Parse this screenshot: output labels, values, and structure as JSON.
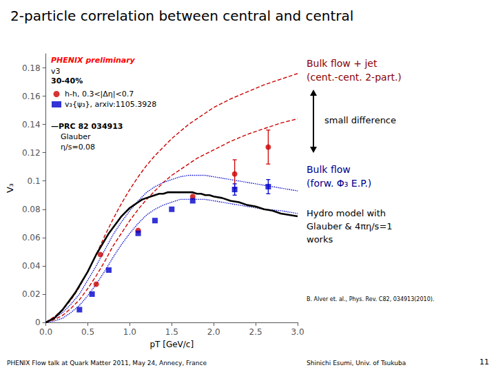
{
  "chart_data": {
    "type": "line",
    "title": "2-particle correlation between central and central",
    "x_label": "pT [GeV/c]",
    "y_label": "V₃",
    "xlim": [
      0,
      3.0
    ],
    "xticks": [
      {
        "value": 0,
        "label": "0.0"
      },
      0.5,
      {
        "value": 1.0,
        "label": "1.0"
      },
      1.5,
      {
        "value": 2.0,
        "label": "2.0"
      },
      2.5,
      {
        "value": 3.0,
        "label": "3.0"
      }
    ],
    "ylim": [
      0,
      0.19
    ],
    "yticks": [
      0,
      0.02,
      0.04,
      0.06,
      0.08,
      0.1,
      0.12,
      0.14,
      0.16,
      0.18
    ],
    "grid": false,
    "legend": "upper left",
    "series": [
      {
        "type": "line",
        "line_style": "dotted",
        "color": "#0000cc",
        "x": [
          0.0,
          0.1,
          0.2,
          0.3,
          0.4,
          0.5,
          0.6,
          0.7,
          0.8,
          0.9,
          1.0,
          1.1,
          1.2,
          1.3,
          1.4,
          1.5,
          1.6,
          1.7,
          1.8,
          1.9,
          2.0,
          2.2,
          2.4,
          2.6,
          2.8,
          3.0
        ],
        "values": [
          0.0,
          0.003,
          0.007,
          0.013,
          0.02,
          0.03,
          0.04,
          0.051,
          0.062,
          0.071,
          0.079,
          0.086,
          0.092,
          0.096,
          0.099,
          0.101,
          0.103,
          0.104,
          0.104,
          0.104,
          0.103,
          0.101,
          0.099,
          0.097,
          0.095,
          0.093
        ]
      },
      {
        "type": "line",
        "line_style": "dotted",
        "color": "#0000cc",
        "x": [
          0.0,
          0.1,
          0.2,
          0.3,
          0.4,
          0.5,
          0.6,
          0.7,
          0.8,
          0.9,
          1.0,
          1.1,
          1.2,
          1.3,
          1.4,
          1.5,
          1.6,
          1.7,
          1.8,
          1.9,
          2.0,
          2.2,
          2.4,
          2.6,
          2.8,
          3.0
        ],
        "values": [
          0.0,
          0.001,
          0.003,
          0.007,
          0.012,
          0.019,
          0.027,
          0.036,
          0.046,
          0.055,
          0.063,
          0.07,
          0.076,
          0.08,
          0.083,
          0.085,
          0.087,
          0.087,
          0.087,
          0.087,
          0.086,
          0.084,
          0.082,
          0.08,
          0.079,
          0.077
        ]
      },
      {
        "type": "line",
        "line_style": "dashed",
        "color": "#cc0000",
        "x": [
          0.0,
          0.1,
          0.2,
          0.3,
          0.4,
          0.5,
          0.6,
          0.7,
          0.8,
          0.9,
          1.0,
          1.1,
          1.2,
          1.3,
          1.4,
          1.5,
          1.6,
          1.7,
          1.8,
          1.9,
          2.0,
          2.2,
          2.4,
          2.6,
          2.8,
          3.0
        ],
        "values": [
          0.0,
          0.004,
          0.009,
          0.016,
          0.025,
          0.036,
          0.048,
          0.061,
          0.073,
          0.084,
          0.094,
          0.103,
          0.111,
          0.118,
          0.124,
          0.13,
          0.135,
          0.14,
          0.144,
          0.148,
          0.152,
          0.158,
          0.163,
          0.168,
          0.172,
          0.176
        ]
      },
      {
        "type": "line",
        "line_style": "dashed",
        "color": "#cc0000",
        "x": [
          0.0,
          0.1,
          0.2,
          0.3,
          0.4,
          0.5,
          0.6,
          0.7,
          0.8,
          0.9,
          1.0,
          1.1,
          1.2,
          1.3,
          1.4,
          1.5,
          1.6,
          1.7,
          1.8,
          1.9,
          2.0,
          2.2,
          2.4,
          2.6,
          2.8,
          3.0
        ],
        "values": [
          0.0,
          0.002,
          0.005,
          0.01,
          0.016,
          0.024,
          0.033,
          0.043,
          0.054,
          0.063,
          0.072,
          0.08,
          0.087,
          0.093,
          0.099,
          0.104,
          0.108,
          0.112,
          0.116,
          0.119,
          0.122,
          0.128,
          0.133,
          0.137,
          0.141,
          0.144
        ]
      },
      {
        "type": "line",
        "line_style": "solid",
        "color": "black",
        "x": [
          0.0,
          0.05,
          0.1,
          0.15,
          0.2,
          0.25,
          0.3,
          0.35,
          0.4,
          0.45,
          0.5,
          0.55,
          0.6,
          0.65,
          0.7,
          0.75,
          0.8,
          0.85,
          0.9,
          0.95,
          1.0,
          1.05,
          1.1,
          1.15,
          1.2,
          1.25,
          1.3,
          1.35,
          1.4,
          1.45,
          1.5,
          1.55,
          1.6,
          1.65,
          1.7,
          1.75,
          1.8,
          1.85,
          1.9,
          1.95,
          2.0,
          2.1,
          2.2,
          2.3,
          2.4,
          2.5,
          2.6,
          2.7,
          2.8,
          2.9,
          3.0
        ],
        "values": [
          0.0,
          0.0015,
          0.003,
          0.006,
          0.009,
          0.013,
          0.017,
          0.021,
          0.026,
          0.031,
          0.036,
          0.042,
          0.048,
          0.053,
          0.058,
          0.063,
          0.067,
          0.071,
          0.075,
          0.078,
          0.081,
          0.083,
          0.085,
          0.087,
          0.088,
          0.089,
          0.09,
          0.091,
          0.091,
          0.092,
          0.092,
          0.092,
          0.092,
          0.092,
          0.092,
          0.092,
          0.091,
          0.091,
          0.09,
          0.09,
          0.089,
          0.088,
          0.086,
          0.085,
          0.083,
          0.082,
          0.08,
          0.079,
          0.077,
          0.076,
          0.075
        ]
      },
      {
        "type": "scatter",
        "name": "h-h, 0.3<|Δη|<0.7",
        "marker": "circle",
        "color": "#cc0000",
        "x": [
          0.6,
          0.65,
          1.1,
          1.75,
          2.25,
          2.65
        ],
        "values": [
          0.027,
          0.048,
          0.065,
          0.089,
          0.105,
          0.124
        ],
        "errors": [
          0.0,
          0.0,
          0.0,
          0.0,
          0.01,
          0.012
        ]
      },
      {
        "type": "scatter",
        "name": "v₃{ψ₃}, arxiv:1105.3928",
        "marker": "square",
        "color": "#0000cc",
        "x": [
          0.4,
          0.55,
          0.75,
          1.1,
          1.3,
          1.5,
          1.75,
          2.25,
          2.65
        ],
        "values": [
          0.009,
          0.02,
          0.037,
          0.063,
          0.072,
          0.08,
          0.086,
          0.094,
          0.096
        ],
        "errors": [
          0.0,
          0.0,
          0.0,
          0.0,
          0.0,
          0.0,
          0.0,
          0.004,
          0.005
        ]
      }
    ],
    "annotations": [
      {
        "text": "PHENIX preliminary",
        "color": "red"
      },
      {
        "text": "v3"
      },
      {
        "text": "30-40%"
      },
      {
        "text": "—PRC 82 034913"
      },
      {
        "text": "Glauber"
      },
      {
        "text": "η/s=0.08"
      },
      {
        "text": "Bulk flow + jet\n(cent.-cent. 2-part.)",
        "color": "#8b0000"
      },
      {
        "text": "small difference"
      },
      {
        "text": "Bulk flow\n(forw. Φ₃ E.P.)",
        "color": "#00008b"
      },
      {
        "text": "Hydro model with\nGlauber & 4πη/s=1\nworks"
      },
      {
        "text": "B. Alver et. al., Phys. Rev. C82, 034913(2010)."
      },
      {
        "text": "PHENIX Flow talk at Quark Matter 2011, May 24, Annecy, France"
      },
      {
        "text": "Shinichi Esumi, Univ. of Tsukuba"
      },
      {
        "text": "11"
      }
    ]
  }
}
